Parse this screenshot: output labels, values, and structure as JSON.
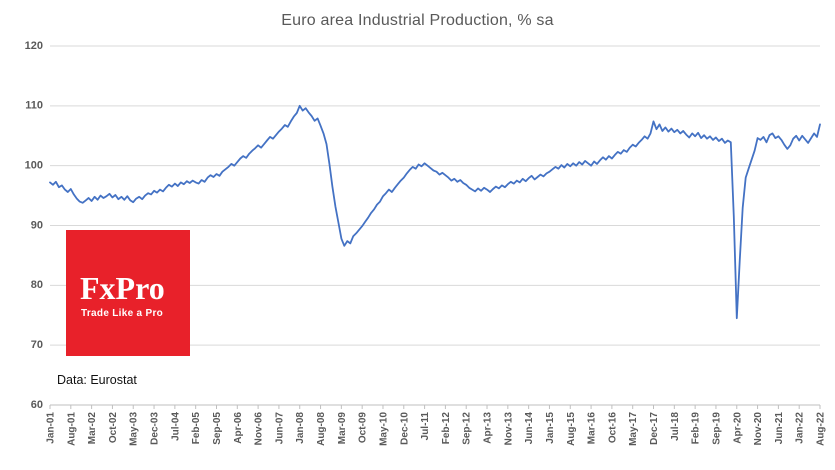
{
  "title": "Euro area Industrial Production, % sa",
  "source_note": "Data: Eurostat",
  "logo": {
    "name": "FxPro",
    "tagline": "Trade Like a Pro",
    "bg_color": "#e8212a",
    "text_color": "#ffffff"
  },
  "colors": {
    "line": "#4472c4",
    "grid": "#d9d9d9",
    "axis": "#bfbfbf",
    "tick_text": "#595959",
    "title_text": "#595959"
  },
  "chart_data": {
    "type": "line",
    "title": "Euro area Industrial Production, % sa",
    "x_start": "Jan-01",
    "x_end": "Aug-22",
    "frequency": "monthly",
    "x_tick_step_months": 7,
    "x_tick_labels": [
      "Jan-01",
      "Aug-01",
      "Mar-02",
      "Oct-02",
      "May-03",
      "Dec-03",
      "Jul-04",
      "Feb-05",
      "Sep-05",
      "Apr-06",
      "Nov-06",
      "Jun-07",
      "Jan-08",
      "Aug-08",
      "Mar-09",
      "Oct-09",
      "May-10",
      "Dec-10",
      "Jul-11",
      "Feb-12",
      "Sep-12",
      "Apr-13",
      "Nov-13",
      "Jun-14",
      "Jan-15",
      "Aug-15",
      "Mar-16",
      "Oct-16",
      "May-17",
      "Dec-17",
      "Jul-18",
      "Feb-19",
      "Sep-19",
      "Apr-20",
      "Nov-20",
      "Jun-21",
      "Jan-22",
      "Aug-22"
    ],
    "y_ticks": [
      60,
      70,
      80,
      90,
      100,
      110,
      120
    ],
    "ylim": [
      60,
      120
    ],
    "grid": "horizontal",
    "legend": "none",
    "series": [
      {
        "name": "Euro area Industrial Production, % sa",
        "values": [
          97.2,
          96.8,
          97.3,
          96.4,
          96.7,
          96.0,
          95.6,
          96.1,
          95.2,
          94.5,
          94.0,
          93.8,
          94.2,
          94.6,
          94.1,
          94.8,
          94.3,
          95.0,
          94.6,
          94.9,
          95.3,
          94.7,
          95.1,
          94.4,
          94.8,
          94.3,
          94.9,
          94.2,
          93.9,
          94.5,
          94.8,
          94.4,
          95.0,
          95.4,
          95.2,
          95.8,
          95.5,
          96.0,
          95.7,
          96.3,
          96.8,
          96.5,
          97.0,
          96.6,
          97.2,
          96.9,
          97.4,
          97.1,
          97.5,
          97.2,
          97.0,
          97.6,
          97.3,
          98.0,
          98.4,
          98.1,
          98.6,
          98.3,
          99.0,
          99.4,
          99.8,
          100.3,
          100.0,
          100.6,
          101.2,
          101.6,
          101.3,
          102.0,
          102.5,
          102.9,
          103.4,
          103.0,
          103.6,
          104.2,
          104.8,
          104.5,
          105.1,
          105.7,
          106.2,
          106.8,
          106.5,
          107.4,
          108.2,
          108.8,
          110.0,
          109.2,
          109.6,
          108.9,
          108.3,
          107.5,
          107.9,
          106.7,
          105.4,
          103.6,
          100.2,
          96.5,
          93.2,
          90.5,
          87.8,
          86.6,
          87.4,
          87.0,
          88.2,
          88.7,
          89.3,
          89.9,
          90.6,
          91.3,
          92.1,
          92.7,
          93.5,
          94.0,
          94.9,
          95.4,
          96.0,
          95.6,
          96.3,
          96.9,
          97.5,
          98.0,
          98.7,
          99.3,
          99.8,
          99.5,
          100.2,
          99.9,
          100.4,
          100.0,
          99.6,
          99.2,
          99.0,
          98.5,
          98.8,
          98.4,
          98.0,
          97.5,
          97.8,
          97.3,
          97.6,
          97.1,
          96.8,
          96.3,
          96.0,
          95.7,
          96.2,
          95.8,
          96.3,
          96.0,
          95.6,
          96.1,
          96.5,
          96.2,
          96.7,
          96.4,
          96.9,
          97.3,
          97.0,
          97.5,
          97.2,
          97.8,
          97.4,
          97.9,
          98.3,
          97.7,
          98.1,
          98.5,
          98.2,
          98.7,
          99.0,
          99.4,
          99.8,
          99.5,
          100.1,
          99.7,
          100.3,
          99.9,
          100.4,
          100.0,
          100.6,
          100.2,
          100.8,
          100.4,
          100.0,
          100.7,
          100.3,
          100.9,
          101.4,
          101.0,
          101.6,
          101.2,
          101.8,
          102.3,
          102.0,
          102.6,
          102.3,
          103.0,
          103.5,
          103.2,
          103.8,
          104.3,
          104.9,
          104.5,
          105.4,
          107.4,
          106.1,
          106.9,
          105.8,
          106.4,
          105.7,
          106.2,
          105.6,
          106.0,
          105.4,
          105.8,
          105.2,
          104.7,
          105.4,
          104.9,
          105.5,
          104.6,
          105.1,
          104.5,
          104.9,
          104.3,
          104.7,
          104.1,
          104.5,
          103.8,
          104.2,
          103.9,
          91.5,
          74.5,
          84.0,
          93.0,
          98.0,
          99.5,
          101.0,
          102.5,
          104.6,
          104.3,
          104.8,
          103.9,
          105.1,
          105.4,
          104.6,
          104.9,
          104.3,
          103.5,
          102.8,
          103.4,
          104.5,
          105.0,
          104.2,
          105.0,
          104.4,
          103.8,
          104.6,
          105.4,
          104.8,
          106.9
        ]
      }
    ]
  }
}
